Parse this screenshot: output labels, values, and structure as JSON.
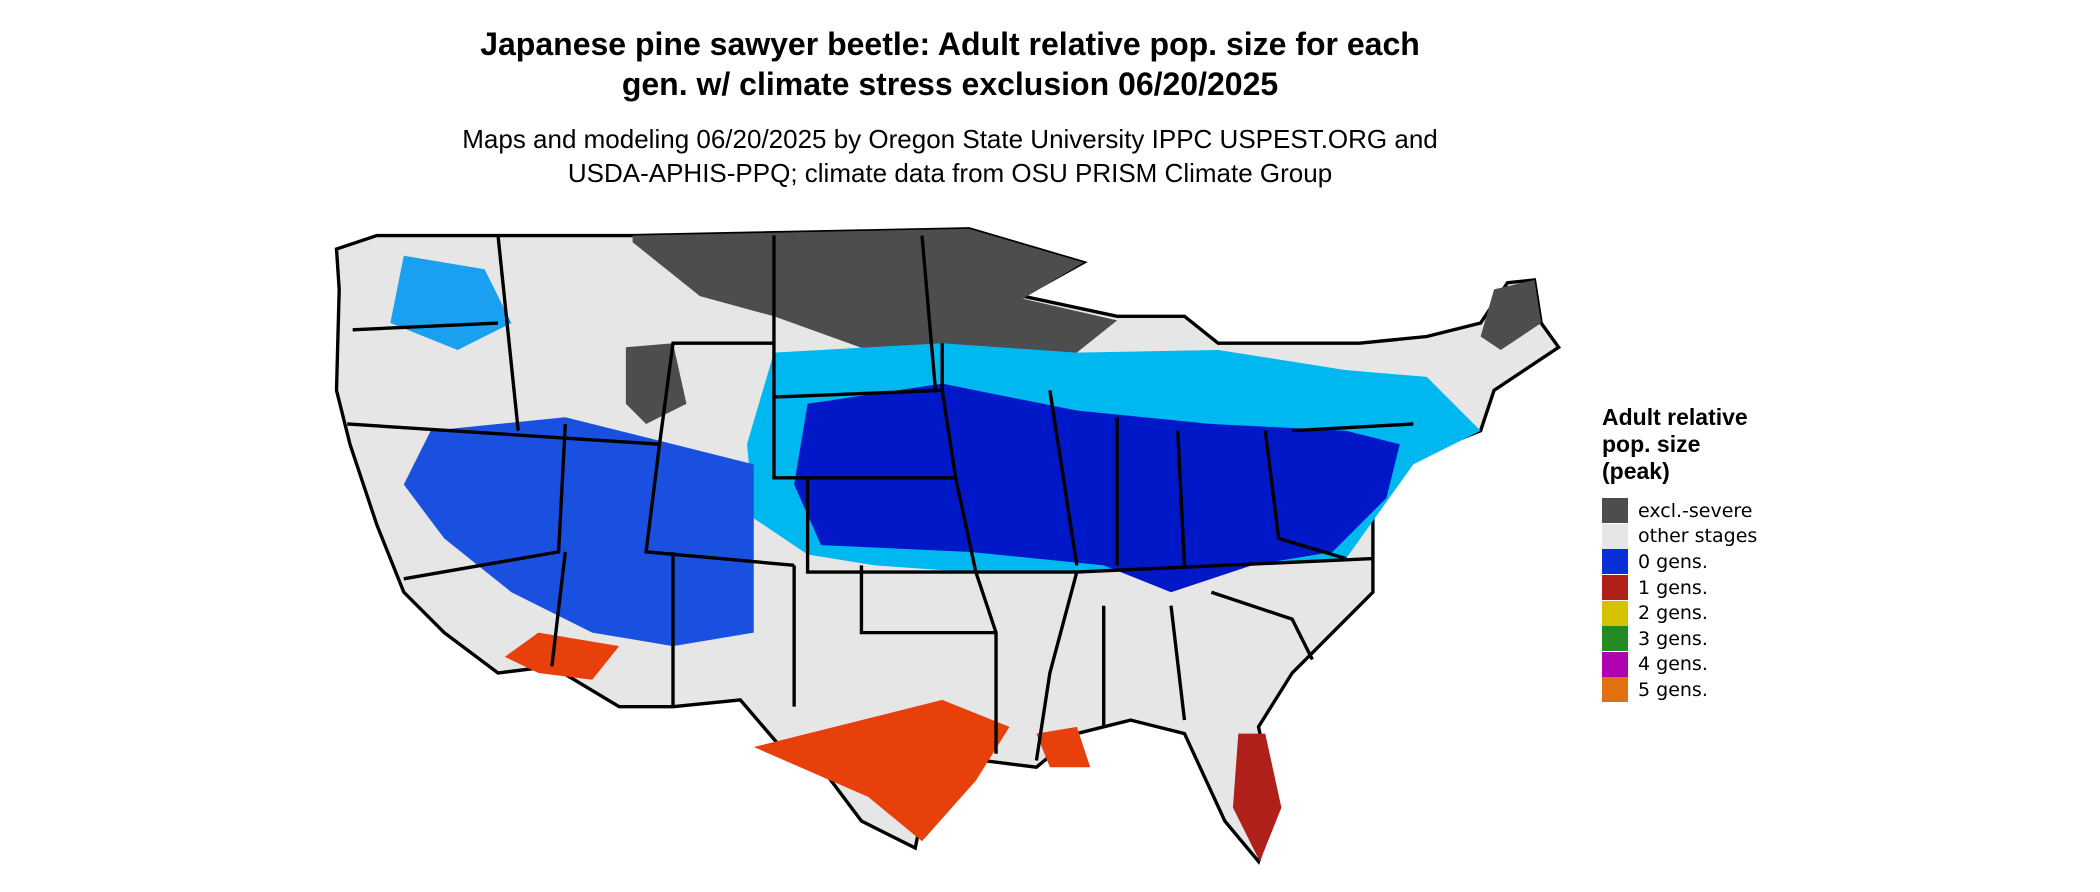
{
  "header": {
    "title_lines": [
      "Japanese pine sawyer beetle: Adult relative pop. size for each",
      "gen. w/ climate stress exclusion 06/20/2025"
    ],
    "subtitle_lines": [
      "Maps and modeling 06/20/2025 by Oregon State University IPPC USPEST.ORG and",
      "USDA-APHIS-PPQ; climate data from OSU PRISM Climate Group"
    ]
  },
  "legend": {
    "title_lines": [
      "Adult relative",
      "pop. size",
      "(peak)"
    ],
    "items": [
      {
        "label": "excl.-severe",
        "color": "#4d4d4d"
      },
      {
        "label": "other stages",
        "color": "#e6e6e6"
      },
      {
        "label": "0 gens.",
        "color": "#0a2fd6"
      },
      {
        "label": "1 gens.",
        "color": "#b0201a"
      },
      {
        "label": "2 gens.",
        "color": "#d6c200"
      },
      {
        "label": "3 gens.",
        "color": "#228b22"
      },
      {
        "label": "4 gens.",
        "color": "#b000b0"
      },
      {
        "label": "5 gens.",
        "color": "#e07010"
      }
    ]
  }
}
